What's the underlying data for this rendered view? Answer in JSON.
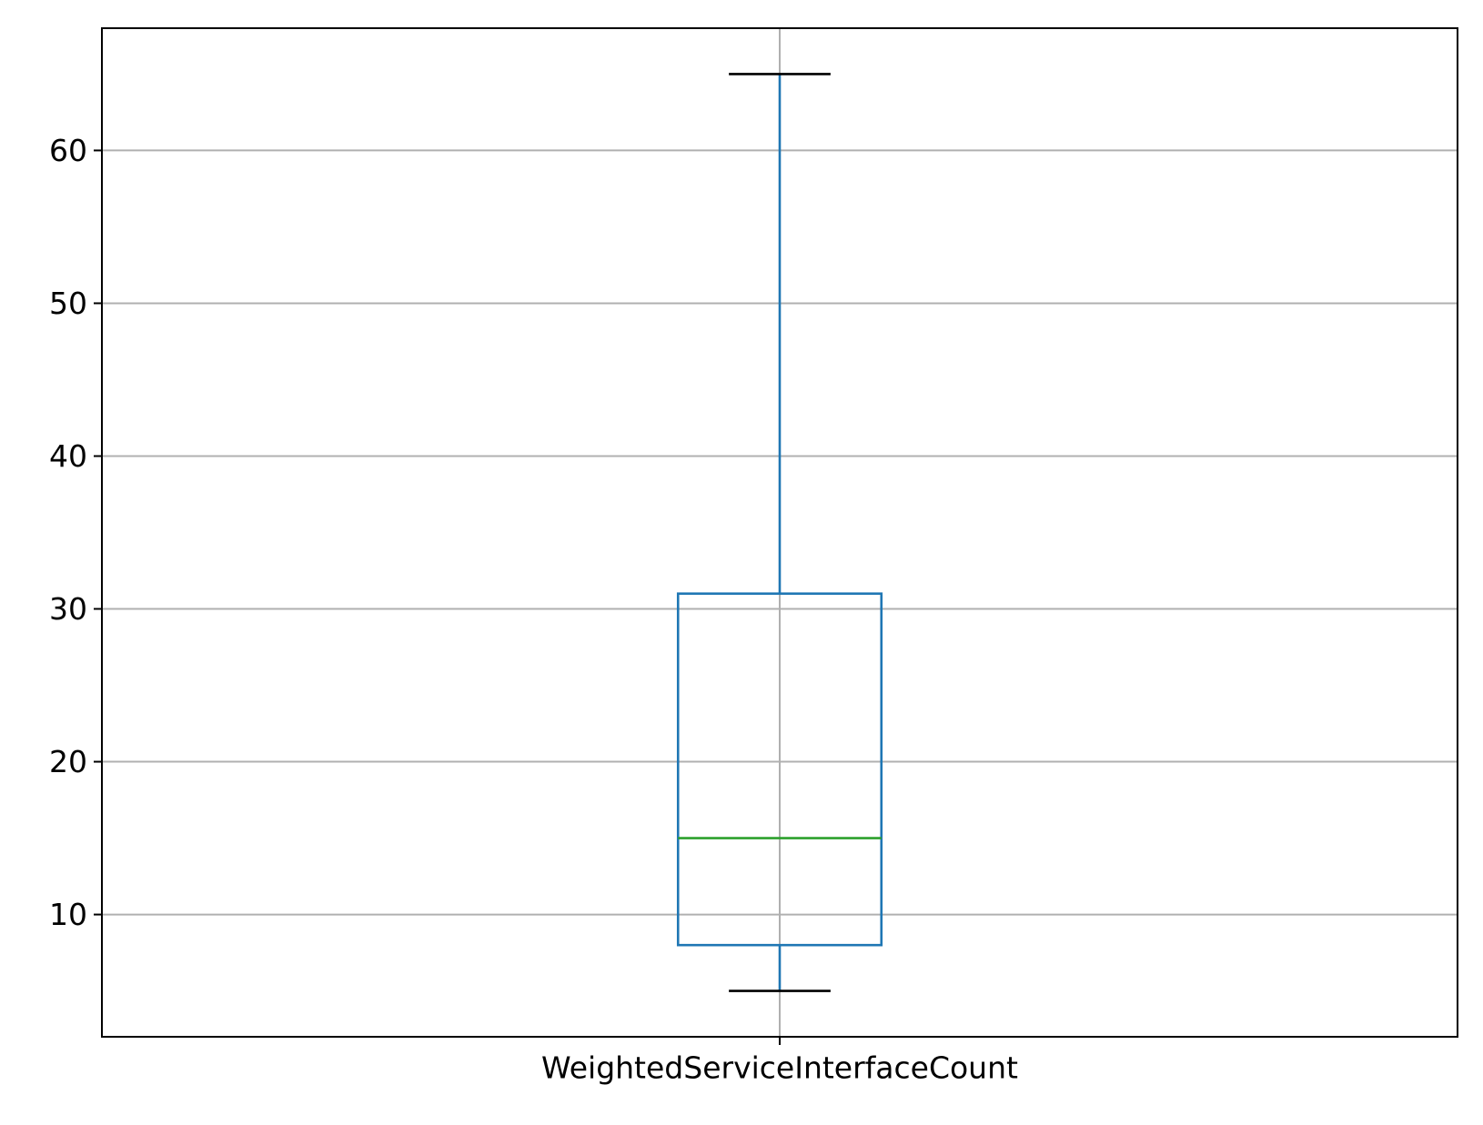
{
  "chart_data": {
    "type": "box",
    "categories": [
      "WeightedServiceInterfaceCount"
    ],
    "series": [
      {
        "whisker_low": 5,
        "q1": 8,
        "median": 15,
        "q3": 31,
        "whisker_high": 65
      }
    ],
    "title": "",
    "xlabel": "",
    "ylabel": "",
    "ylim": [
      2,
      68
    ],
    "y_ticks": [
      10,
      20,
      30,
      40,
      50,
      60
    ],
    "grid": true,
    "legend": "none",
    "colors": {
      "box": "#1f77b4",
      "median": "#2ca02c",
      "caps": "#000000",
      "grid": "#b0b0b0",
      "axes": "#000000"
    }
  }
}
